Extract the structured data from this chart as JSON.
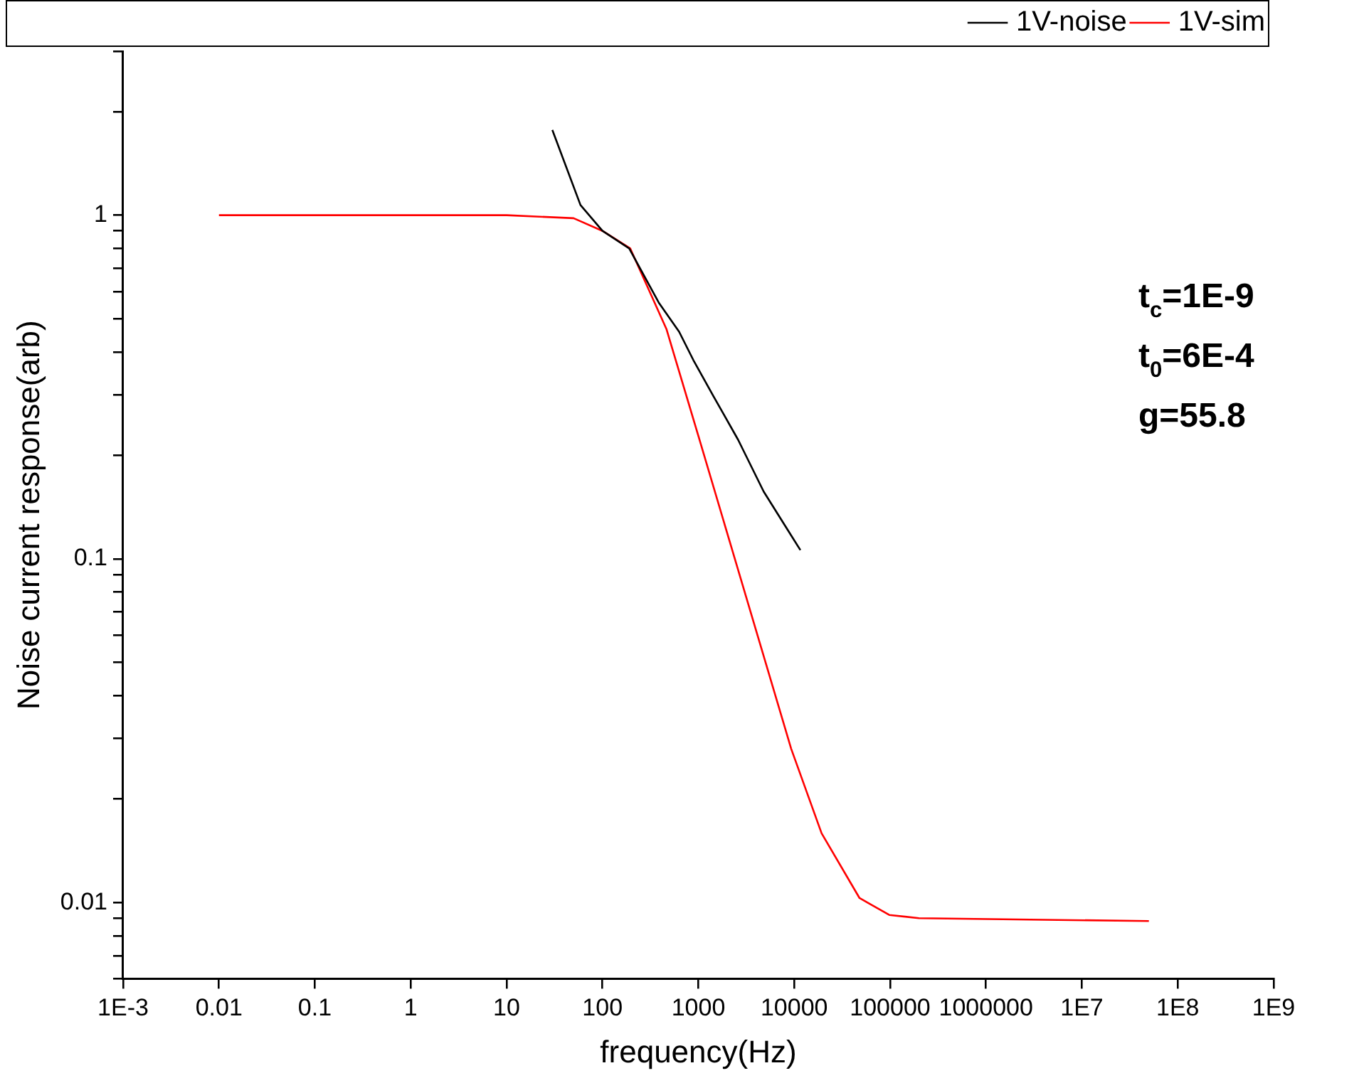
{
  "chart_data": {
    "type": "line",
    "xlabel": "frequency(Hz)",
    "ylabel": "Noise current response(arb)",
    "log": "xy",
    "grid": false,
    "legend": "top right",
    "marker": "none",
    "line_style": "solid",
    "xlim": [
      0.001,
      1000000000
    ],
    "ylim": [
      0.006,
      3
    ],
    "xticks": [
      {
        "value": 0.001,
        "label": "1E-3"
      },
      0.01,
      0.1,
      1,
      10,
      100,
      1000,
      10000,
      100000,
      1000000,
      {
        "value": 10000000,
        "label": "1E7"
      },
      {
        "value": 100000000,
        "label": "1E8"
      },
      {
        "value": 1000000000,
        "label": "1E9"
      }
    ],
    "yticks": [
      {
        "value": 0.006,
        "label": null
      },
      {
        "value": 0.007,
        "label": null
      },
      {
        "value": 0.008,
        "label": null
      },
      {
        "value": 0.009,
        "label": null
      },
      0.01,
      {
        "value": 0.02,
        "label": null
      },
      {
        "value": 0.03,
        "label": null
      },
      {
        "value": 0.04,
        "label": null
      },
      {
        "value": 0.05,
        "label": null
      },
      {
        "value": 0.06,
        "label": null
      },
      {
        "value": 0.07,
        "label": null
      },
      {
        "value": 0.08,
        "label": null
      },
      {
        "value": 0.09,
        "label": null
      },
      0.1,
      {
        "value": 0.2,
        "label": null
      },
      {
        "value": 0.3,
        "label": null
      },
      {
        "value": 0.4,
        "label": null
      },
      {
        "value": 0.5,
        "label": null
      },
      {
        "value": 0.6,
        "label": null
      },
      {
        "value": 0.7,
        "label": null
      },
      {
        "value": 0.8,
        "label": null
      },
      {
        "value": 0.9,
        "label": null
      },
      1,
      {
        "value": 2,
        "label": null
      },
      {
        "value": 3,
        "label": null
      }
    ],
    "annotations": [
      "t$_{c}$=1E-9",
      "t$_{0}$=6E-4",
      "g=55.8"
    ],
    "series": [
      {
        "name": "1V-noise",
        "color": "#000000",
        "x": [
          30,
          59,
          100,
          190,
          386,
          630,
          890,
          1450,
          2600,
          4800,
          8000,
          11600
        ],
        "values": [
          1.77,
          1.07,
          0.9,
          0.8,
          0.557,
          0.458,
          0.378,
          0.296,
          0.222,
          0.157,
          0.125,
          0.106
        ]
      },
      {
        "name": "1V-sim",
        "color": "#ff0000",
        "x": [
          0.01,
          0.1,
          1,
          10,
          50,
          100,
          195,
          464,
          1000,
          9300,
          19300,
          48000,
          98000,
          200000,
          50000000
        ],
        "values": [
          1,
          1,
          1,
          1,
          0.98,
          0.9,
          0.8,
          0.467,
          0.228,
          0.028,
          0.0159,
          0.0103,
          0.0092,
          0.009,
          0.00883
        ]
      }
    ]
  }
}
